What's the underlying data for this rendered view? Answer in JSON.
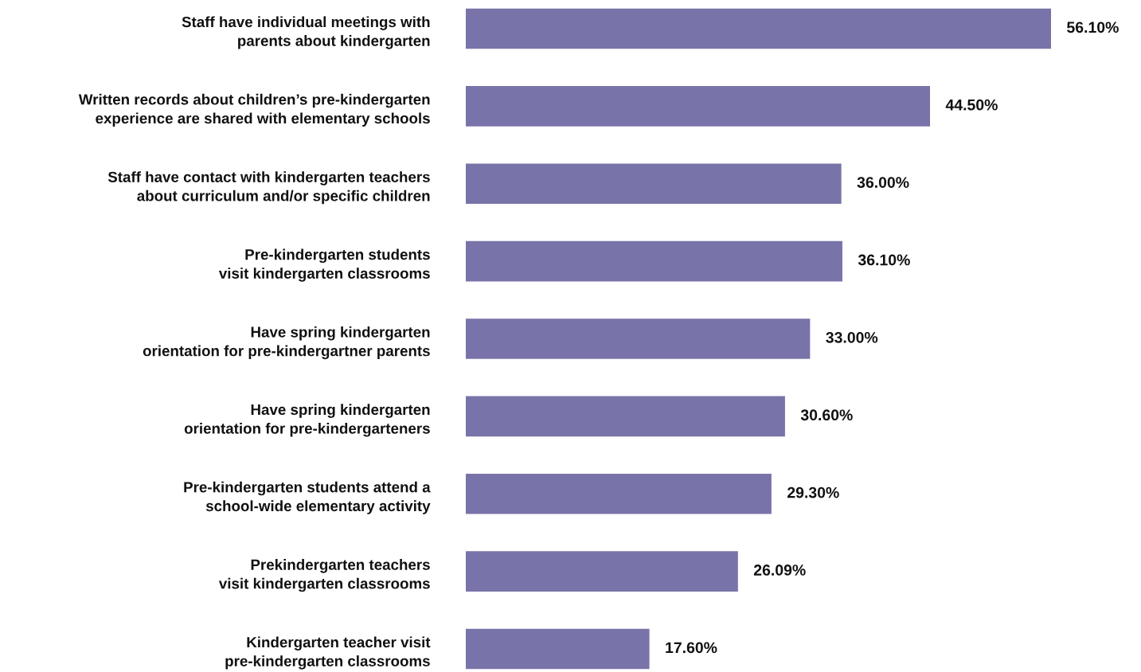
{
  "chart_data": {
    "type": "bar",
    "orientation": "horizontal",
    "categories": [
      "Staff have individual meetings with\nparents about kindergarten",
      "Written records about children’s pre-kindergarten\nexperience are shared with elementary schools",
      "Staff have contact with kindergarten teachers\nabout curriculum and/or specific children",
      "Pre-kindergarten students\nvisit kindergarten classrooms",
      "Have spring kindergarten\norientation for pre-kindergartner parents",
      "Have spring kindergarten\norientation for pre-kindergarteners",
      "Pre-kindergarten students attend a\nschool-wide elementary activity",
      "Prekindergarten teachers\nvisit kindergarten classrooms",
      "Kindergarten teacher visit\npre-kindergarten classrooms"
    ],
    "series": [
      {
        "color": "#7873a8",
        "values": [
          56.1,
          44.5,
          36.0,
          36.1,
          33.0,
          30.6,
          29.3,
          26.09,
          17.6
        ],
        "value_labels": [
          "56.10%",
          "44.50%",
          "36.00%",
          "36.10%",
          "33.00%",
          "30.60%",
          "29.30%",
          "26.09%",
          "17.60%"
        ]
      }
    ],
    "tick_labels": "y"
  }
}
